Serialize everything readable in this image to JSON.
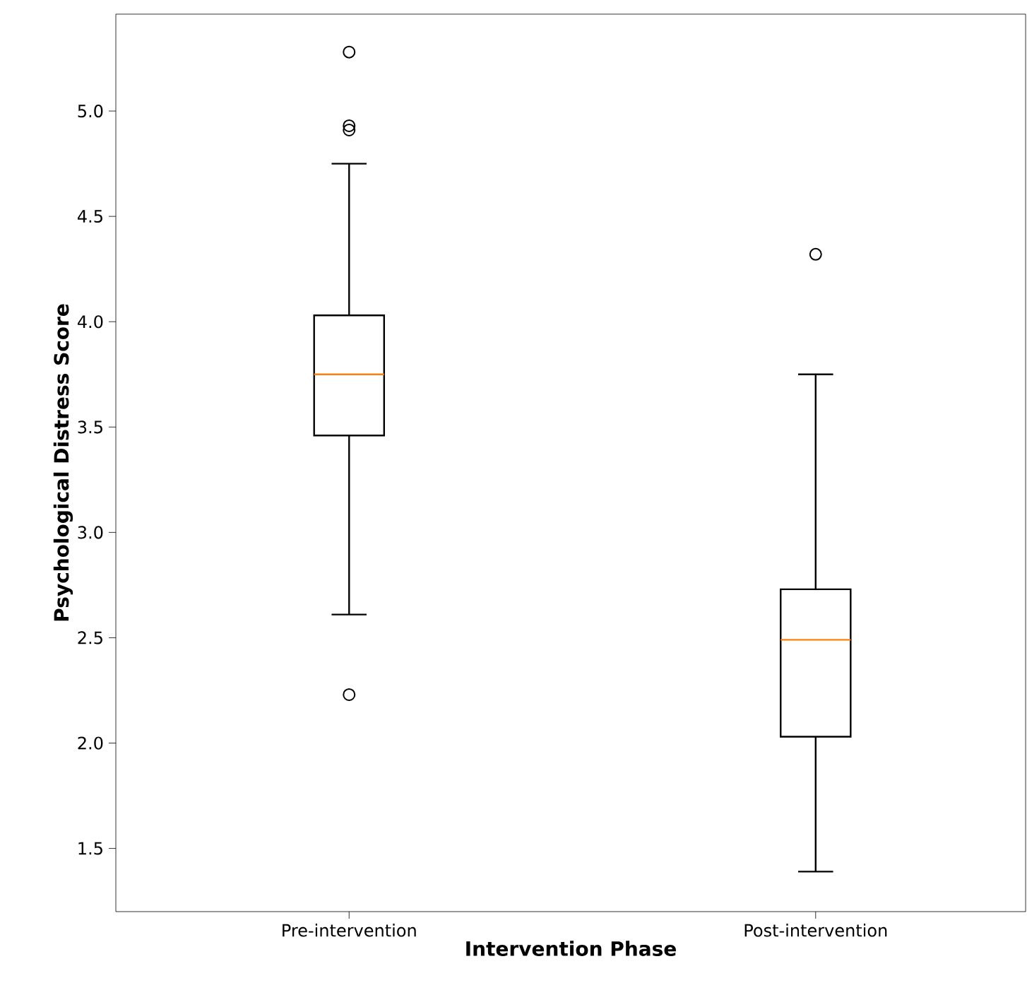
{
  "chart_data": {
    "type": "box",
    "xlabel": "Intervention Phase",
    "ylabel": "Psychological Distress Score",
    "categories": [
      "Pre-intervention",
      "Post-intervention"
    ],
    "boxes": [
      {
        "low": 2.61,
        "q1": 3.46,
        "median": 3.75,
        "q3": 4.03,
        "high": 4.75,
        "outliers": [
          5.28,
          4.93,
          4.91,
          2.23
        ]
      },
      {
        "low": 1.39,
        "q1": 2.03,
        "median": 2.49,
        "q3": 2.73,
        "high": 3.75,
        "outliers": [
          4.32
        ]
      }
    ],
    "ylim": [
      1.2,
      5.46
    ],
    "yticks": [
      {
        "value": 1.5,
        "label": "1.5"
      },
      {
        "value": 2.0,
        "label": "2.0"
      },
      {
        "value": 2.5,
        "label": "2.5"
      },
      {
        "value": 3.0,
        "label": "3.0"
      },
      {
        "value": 3.5,
        "label": "3.5"
      },
      {
        "value": 4.0,
        "label": "4.0"
      },
      {
        "value": 4.5,
        "label": "4.5"
      },
      {
        "value": 5.0,
        "label": "5.0"
      }
    ],
    "grid": false
  }
}
